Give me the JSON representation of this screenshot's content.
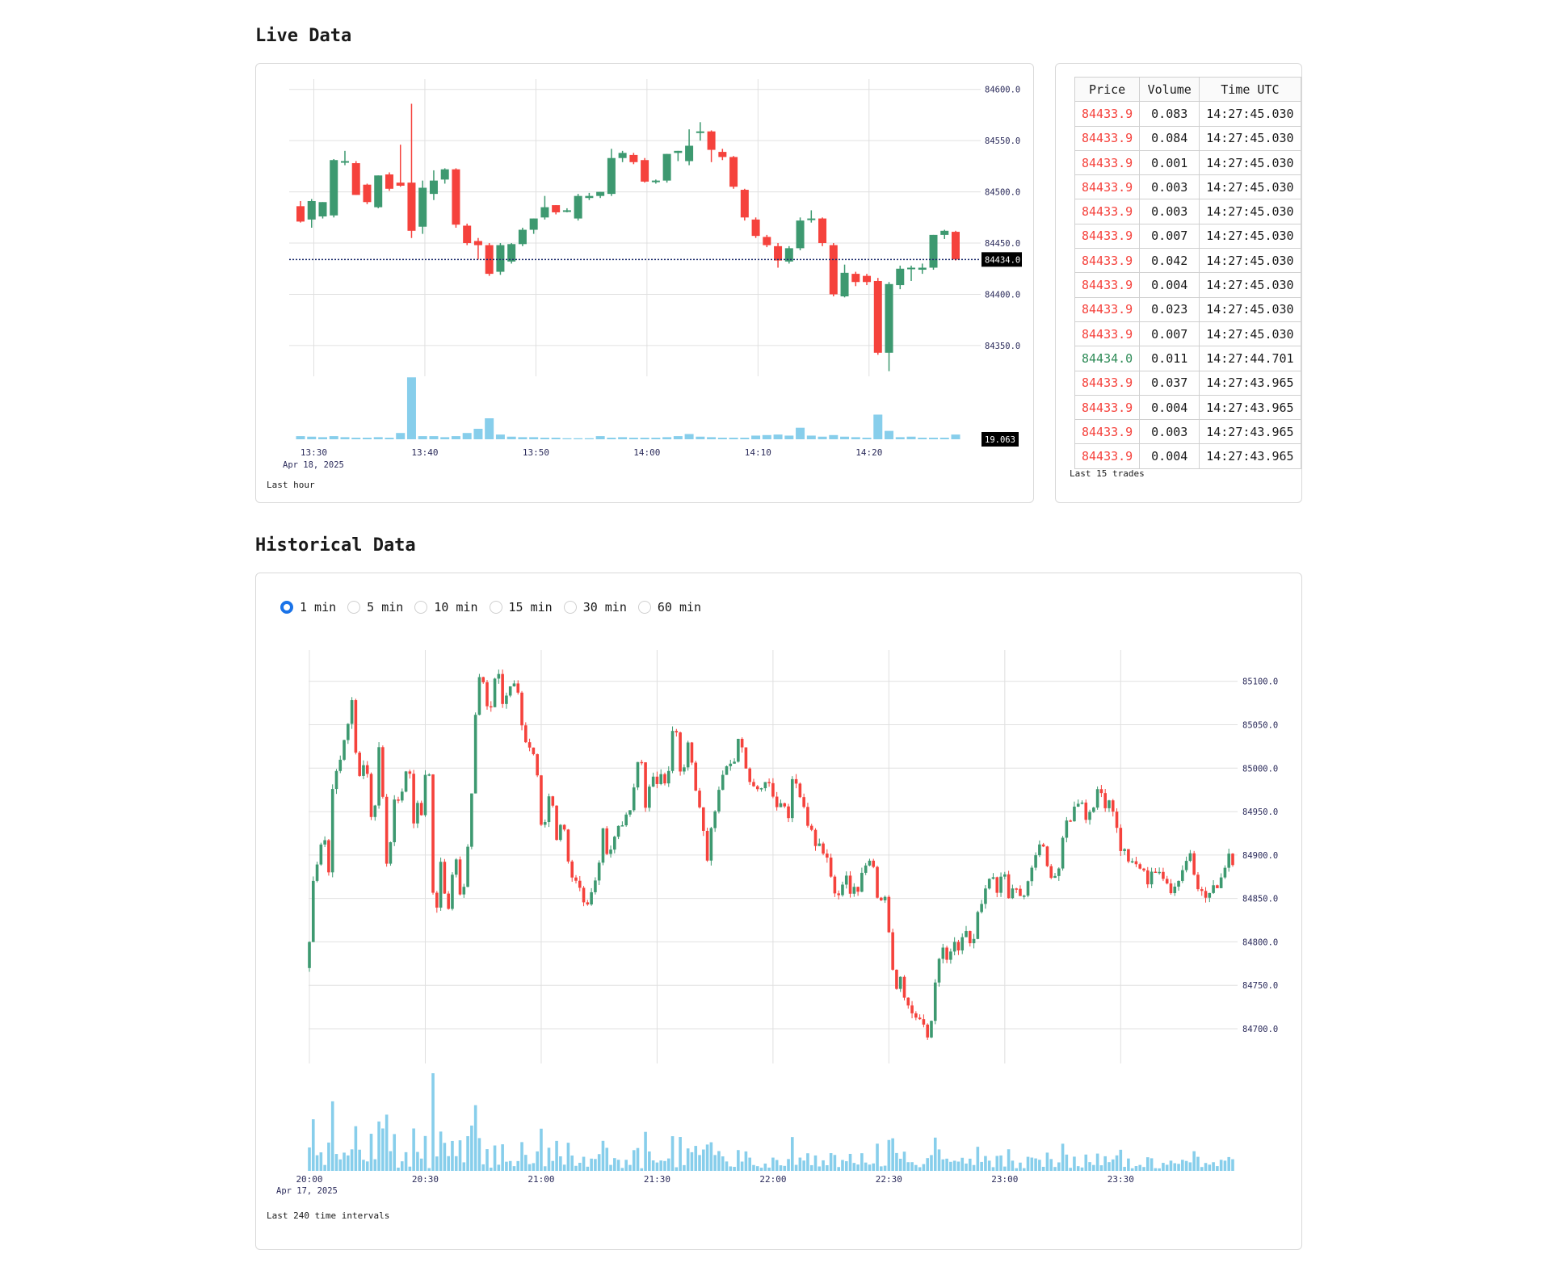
{
  "live": {
    "title": "Live Data",
    "caption": "Last hour",
    "chart_caption_date": "Apr 18, 2025",
    "current_price_label": "84434.0",
    "current_volume_label": "19.063"
  },
  "trades": {
    "caption": "Last 15 trades",
    "headers": [
      "Price",
      "Volume",
      "Time UTC"
    ],
    "rows": [
      {
        "price": "84433.9",
        "volume": "0.083",
        "time": "14:27:45.030",
        "side": "sell"
      },
      {
        "price": "84433.9",
        "volume": "0.084",
        "time": "14:27:45.030",
        "side": "sell"
      },
      {
        "price": "84433.9",
        "volume": "0.001",
        "time": "14:27:45.030",
        "side": "sell"
      },
      {
        "price": "84433.9",
        "volume": "0.003",
        "time": "14:27:45.030",
        "side": "sell"
      },
      {
        "price": "84433.9",
        "volume": "0.003",
        "time": "14:27:45.030",
        "side": "sell"
      },
      {
        "price": "84433.9",
        "volume": "0.007",
        "time": "14:27:45.030",
        "side": "sell"
      },
      {
        "price": "84433.9",
        "volume": "0.042",
        "time": "14:27:45.030",
        "side": "sell"
      },
      {
        "price": "84433.9",
        "volume": "0.004",
        "time": "14:27:45.030",
        "side": "sell"
      },
      {
        "price": "84433.9",
        "volume": "0.023",
        "time": "14:27:45.030",
        "side": "sell"
      },
      {
        "price": "84433.9",
        "volume": "0.007",
        "time": "14:27:45.030",
        "side": "sell"
      },
      {
        "price": "84434.0",
        "volume": "0.011",
        "time": "14:27:44.701",
        "side": "buy"
      },
      {
        "price": "84433.9",
        "volume": "0.037",
        "time": "14:27:43.965",
        "side": "sell"
      },
      {
        "price": "84433.9",
        "volume": "0.004",
        "time": "14:27:43.965",
        "side": "sell"
      },
      {
        "price": "84433.9",
        "volume": "0.003",
        "time": "14:27:43.965",
        "side": "sell"
      },
      {
        "price": "84433.9",
        "volume": "0.004",
        "time": "14:27:43.965",
        "side": "sell"
      }
    ]
  },
  "historical": {
    "title": "Historical Data",
    "caption": "Last 240 time intervals",
    "chart_caption_date": "Apr 17, 2025",
    "intervals": [
      {
        "label": "1 min",
        "selected": true
      },
      {
        "label": "5 min",
        "selected": false
      },
      {
        "label": "10 min",
        "selected": false
      },
      {
        "label": "15 min",
        "selected": false
      },
      {
        "label": "30 min",
        "selected": false
      },
      {
        "label": "60 min",
        "selected": false
      }
    ]
  },
  "colors": {
    "up": "#3d9970",
    "down": "#f5423c",
    "volume": "#87ceeb",
    "grid": "#e0e0e0",
    "axis_text": "#2a2a5a",
    "sell_text": "#f5423c",
    "buy_text": "#2e8b57"
  },
  "chart_data": [
    {
      "type": "candlestick",
      "title": "",
      "x_ticks": [
        "13:30",
        "13:40",
        "13:50",
        "14:00",
        "14:10",
        "14:20"
      ],
      "y_ticks": [
        "84600.0",
        "84550.0",
        "84500.0",
        "84450.0",
        "84400.0",
        "84350.0"
      ],
      "ylim": [
        84320,
        84610
      ],
      "x_start_minute": 13.5,
      "candles": [
        {
          "o": 84486,
          "h": 84491,
          "c": 84471,
          "l": 84470
        },
        {
          "o": 84473,
          "h": 84493,
          "c": 84491,
          "l": 84465
        },
        {
          "o": 84476,
          "h": 84490,
          "c": 84490,
          "l": 84474
        },
        {
          "o": 84477,
          "h": 84532,
          "c": 84531,
          "l": 84475
        },
        {
          "o": 84529,
          "h": 84540,
          "c": 84530,
          "l": 84526
        },
        {
          "o": 84528,
          "h": 84530,
          "c": 84497,
          "l": 84497
        },
        {
          "o": 84507,
          "h": 84508,
          "c": 84490,
          "l": 84488
        },
        {
          "o": 84485,
          "h": 84516,
          "c": 84516,
          "l": 84484
        },
        {
          "o": 84517,
          "h": 84519,
          "c": 84503,
          "l": 84501
        },
        {
          "o": 84509,
          "h": 84546,
          "c": 84506,
          "l": 84505
        },
        {
          "o": 84509,
          "h": 84586,
          "c": 84462,
          "l": 84455
        },
        {
          "o": 84466,
          "h": 84511,
          "c": 84504,
          "l": 84459
        },
        {
          "o": 84498,
          "h": 84521,
          "c": 84511,
          "l": 84492
        },
        {
          "o": 84512,
          "h": 84523,
          "c": 84522,
          "l": 84508
        },
        {
          "o": 84522,
          "h": 84523,
          "c": 84468,
          "l": 84465
        },
        {
          "o": 84467,
          "h": 84469,
          "c": 84450,
          "l": 84448
        },
        {
          "o": 84452,
          "h": 84455,
          "c": 84448,
          "l": 84434
        },
        {
          "o": 84448,
          "h": 84450,
          "c": 84420,
          "l": 84418
        },
        {
          "o": 84422,
          "h": 84450,
          "c": 84448,
          "l": 84419
        },
        {
          "o": 84432,
          "h": 84450,
          "c": 84449,
          "l": 84430
        },
        {
          "o": 84449,
          "h": 84465,
          "c": 84463,
          "l": 84447
        },
        {
          "o": 84463,
          "h": 84474,
          "c": 84474,
          "l": 84459
        },
        {
          "o": 84475,
          "h": 84496,
          "c": 84485,
          "l": 84473
        },
        {
          "o": 84487,
          "h": 84487,
          "c": 84480,
          "l": 84478
        },
        {
          "o": 84482,
          "h": 84484,
          "c": 84482,
          "l": 84480
        },
        {
          "o": 84474,
          "h": 84498,
          "c": 84496,
          "l": 84472
        },
        {
          "o": 84494,
          "h": 84499,
          "c": 84496,
          "l": 84492
        },
        {
          "o": 84496,
          "h": 84500,
          "c": 84500,
          "l": 84494
        },
        {
          "o": 84498,
          "h": 84542,
          "c": 84533,
          "l": 84496
        },
        {
          "o": 84533,
          "h": 84540,
          "c": 84538,
          "l": 84529
        },
        {
          "o": 84536,
          "h": 84538,
          "c": 84529,
          "l": 84527
        },
        {
          "o": 84531,
          "h": 84533,
          "c": 84510,
          "l": 84509
        },
        {
          "o": 84510,
          "h": 84512,
          "c": 84511,
          "l": 84508
        },
        {
          "o": 84511,
          "h": 84537,
          "c": 84537,
          "l": 84509
        },
        {
          "o": 84538,
          "h": 84540,
          "c": 84540,
          "l": 84530
        },
        {
          "o": 84530,
          "h": 84561,
          "c": 84545,
          "l": 84526
        },
        {
          "o": 84558,
          "h": 84568,
          "c": 84559,
          "l": 84550
        },
        {
          "o": 84559,
          "h": 84560,
          "c": 84541,
          "l": 84529
        },
        {
          "o": 84539,
          "h": 84542,
          "c": 84534,
          "l": 84531
        },
        {
          "o": 84534,
          "h": 84535,
          "c": 84505,
          "l": 84503
        },
        {
          "o": 84502,
          "h": 84503,
          "c": 84475,
          "l": 84472
        },
        {
          "o": 84473,
          "h": 84475,
          "c": 84457,
          "l": 84455
        },
        {
          "o": 84456,
          "h": 84458,
          "c": 84448,
          "l": 84446
        },
        {
          "o": 84447,
          "h": 84450,
          "c": 84433,
          "l": 84426
        },
        {
          "o": 84432,
          "h": 84447,
          "c": 84445,
          "l": 84430
        },
        {
          "o": 84445,
          "h": 84475,
          "c": 84472,
          "l": 84443
        },
        {
          "o": 84474,
          "h": 84482,
          "c": 84474,
          "l": 84470
        },
        {
          "o": 84474,
          "h": 84475,
          "c": 84450,
          "l": 84447
        },
        {
          "o": 84448,
          "h": 84450,
          "c": 84400,
          "l": 84398
        },
        {
          "o": 84398,
          "h": 84429,
          "c": 84421,
          "l": 84397
        },
        {
          "o": 84420,
          "h": 84422,
          "c": 84412,
          "l": 84408
        },
        {
          "o": 84418,
          "h": 84420,
          "c": 84412,
          "l": 84409
        },
        {
          "o": 84413,
          "h": 84416,
          "c": 84343,
          "l": 84341
        },
        {
          "o": 84343,
          "h": 84412,
          "c": 84410,
          "l": 84325
        },
        {
          "o": 84409,
          "h": 84428,
          "c": 84425,
          "l": 84405
        },
        {
          "o": 84425,
          "h": 84428,
          "c": 84426,
          "l": 84413
        },
        {
          "o": 84424,
          "h": 84430,
          "c": 84426,
          "l": 84420
        },
        {
          "o": 84426,
          "h": 84458,
          "c": 84458,
          "l": 84424
        },
        {
          "o": 84458,
          "h": 84463,
          "c": 84462,
          "l": 84454
        },
        {
          "o": 84461,
          "h": 84462,
          "c": 84434,
          "l": 84433
        }
      ],
      "volume_ylim": [
        0,
        12
      ],
      "volumes": [
        0.6,
        0.5,
        0.4,
        0.6,
        0.4,
        0.3,
        0.3,
        0.4,
        0.3,
        1.2,
        11.8,
        0.6,
        0.6,
        0.4,
        0.6,
        1.2,
        2.0,
        4.0,
        0.9,
        0.5,
        0.4,
        0.4,
        0.3,
        0.3,
        0.2,
        0.2,
        0.2,
        0.6,
        0.3,
        0.4,
        0.3,
        0.3,
        0.3,
        0.4,
        0.6,
        1.0,
        0.5,
        0.4,
        0.3,
        0.3,
        0.3,
        0.7,
        0.8,
        0.9,
        0.7,
        2.2,
        0.7,
        0.5,
        0.8,
        0.5,
        0.4,
        0.3,
        4.7,
        1.6,
        0.4,
        0.5,
        0.3,
        0.3,
        0.3,
        0.9
      ]
    },
    {
      "type": "candlestick",
      "title": "",
      "x_ticks": [
        "20:00",
        "20:30",
        "21:00",
        "21:30",
        "22:00",
        "22:30",
        "23:00",
        "23:30"
      ],
      "y_ticks": [
        "85100.0",
        "85050.0",
        "85000.0",
        "84950.0",
        "84900.0",
        "84850.0",
        "84800.0",
        "84750.0",
        "84700.0"
      ],
      "ylim": [
        84660,
        85136
      ],
      "n_intervals": 240,
      "path": [
        84800,
        84885,
        84900,
        84935,
        84870,
        84995,
        84990,
        85025,
        85050,
        85075,
        85000,
        84995,
        85015,
        84940,
        84965,
        85050,
        84885,
        84915,
        84960,
        84955,
        84995,
        85000,
        84940,
        84965,
        84935,
        85050,
        84865,
        84830,
        84915,
        84815,
        84875,
        84900,
        84840,
        84880,
        84950,
        85050,
        85115,
        85085,
        85060,
        85100,
        85110,
        85060,
        85095,
        85105,
        85090,
        85050,
        85030,
        85020,
        85000,
        84925,
        84945,
        84985,
        84915,
        84930,
        84930,
        84875,
        84880,
        84860,
        84850,
        84845,
        84860,
        84875,
        84925,
        84890,
        84910,
        84930,
        84940,
        84950,
        84955,
        85005,
        85015,
        84950,
        84990,
        84980,
        85000,
        84980,
        85000,
        85070,
        85000,
        84990,
        85030,
        85000,
        84965,
        84930,
        84895,
        84945,
        84960,
        84985,
        85000,
        85000,
        85015,
        85040,
        85010,
        84990,
        84985,
        84970,
        84975,
        84990,
        84965,
        84960,
        84965,
        84940,
        84990,
        84985,
        84960,
        84940,
        84935,
        84915,
        84910,
        84905,
        84885,
        84855,
        84855,
        84885,
        84855,
        84860,
        84860,
        84880,
        84890,
        84895,
        84850,
        84855,
        84840,
        84780,
        84750,
        84765,
        84730,
        84720,
        84715,
        84710,
        84695,
        84685,
        84755,
        84775,
        84795,
        84770,
        84800,
        84790,
        84800,
        84810,
        84790,
        84830,
        84840,
        84860,
        84880,
        84850,
        84870,
        84880,
        84845,
        84865,
        84850,
        84855,
        84870,
        84890,
        84915,
        84905,
        84880,
        84880,
        84875,
        84910,
        84940,
        84945,
        84960,
        84970,
        84940,
        84955,
        84965,
        84975,
        84960,
        84965,
        84950,
        84910,
        84905,
        84895,
        84885,
        84890,
        84880,
        84870,
        84885,
        84880,
        84870,
        84875,
        84860,
        84865,
        84880,
        84890,
        84905,
        84880,
        84860,
        84850,
        84855,
        84860,
        84870,
        84880,
        84905,
        84895
      ]
    }
  ]
}
